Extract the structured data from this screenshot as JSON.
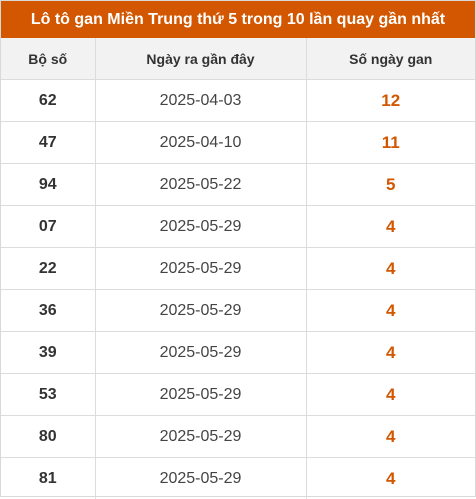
{
  "title": "Lô tô gan Miền Trung thứ 5 trong 10 lần quay gần nhất",
  "columns": [
    "Bộ số",
    "Ngày ra gần đây",
    "Số ngày gan"
  ],
  "rows": [
    {
      "bo_so": "62",
      "ngay": "2025-04-03",
      "so_ngay_gan": "12"
    },
    {
      "bo_so": "47",
      "ngay": "2025-04-10",
      "so_ngay_gan": "11"
    },
    {
      "bo_so": "94",
      "ngay": "2025-05-22",
      "so_ngay_gan": "5"
    },
    {
      "bo_so": "07",
      "ngay": "2025-05-29",
      "so_ngay_gan": "4"
    },
    {
      "bo_so": "22",
      "ngay": "2025-05-29",
      "so_ngay_gan": "4"
    },
    {
      "bo_so": "36",
      "ngay": "2025-05-29",
      "so_ngay_gan": "4"
    },
    {
      "bo_so": "39",
      "ngay": "2025-05-29",
      "so_ngay_gan": "4"
    },
    {
      "bo_so": "53",
      "ngay": "2025-05-29",
      "so_ngay_gan": "4"
    },
    {
      "bo_so": "80",
      "ngay": "2025-05-29",
      "so_ngay_gan": "4"
    },
    {
      "bo_so": "81",
      "ngay": "2025-05-29",
      "so_ngay_gan": "4"
    }
  ],
  "colors": {
    "header_bg": "#d25700",
    "accent_text": "#d25700",
    "column_header_bg": "#f2f2f2"
  }
}
